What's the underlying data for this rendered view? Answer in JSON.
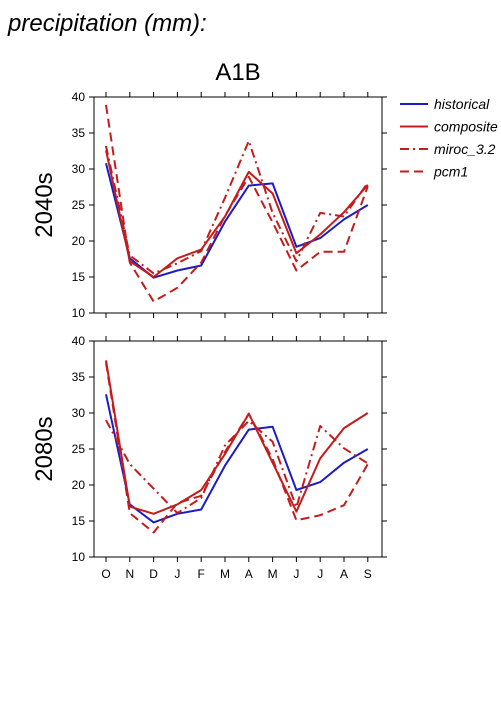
{
  "header": {
    "title": "precipitation (mm):"
  },
  "scenario": "A1B",
  "legend": {
    "position": "top-right",
    "items": [
      {
        "name": "historical",
        "color": "#1c1cc4",
        "dash": "solid"
      },
      {
        "name": "composite",
        "color": "#c41c1c",
        "dash": "solid"
      },
      {
        "name": "miroc_3.2",
        "color": "#c41c1c",
        "dash": "dashdot"
      },
      {
        "name": "pcm1",
        "color": "#c41c1c",
        "dash": "dash"
      }
    ]
  },
  "chart_data": [
    {
      "type": "line",
      "ylabel": "2040s",
      "categories": [
        "O",
        "N",
        "D",
        "J",
        "F",
        "M",
        "A",
        "M",
        "J",
        "J",
        "A",
        "S"
      ],
      "ylim": [
        10,
        40
      ],
      "yticks": [
        10,
        15,
        20,
        25,
        30,
        35,
        40
      ],
      "grid": false,
      "series": [
        {
          "name": "historical",
          "values": [
            30.8,
            17.6,
            14.9,
            15.9,
            16.6,
            22.7,
            27.7,
            28.0,
            19.2,
            20.4,
            23.0,
            25.0
          ]
        },
        {
          "name": "composite",
          "values": [
            32.6,
            17.2,
            15.0,
            17.6,
            18.8,
            23.4,
            29.6,
            26.6,
            18.3,
            20.9,
            24.0,
            27.8
          ]
        },
        {
          "name": "miroc_3.2",
          "values": [
            33.2,
            18.0,
            15.5,
            16.9,
            18.6,
            26.0,
            33.9,
            23.9,
            17.2,
            23.9,
            23.4,
            28.1
          ]
        },
        {
          "name": "pcm1",
          "values": [
            38.9,
            17.0,
            11.6,
            13.5,
            17.0,
            23.5,
            28.9,
            22.6,
            15.9,
            18.5,
            18.5,
            27.6
          ]
        }
      ]
    },
    {
      "type": "line",
      "ylabel": "2080s",
      "categories": [
        "O",
        "N",
        "D",
        "J",
        "F",
        "M",
        "A",
        "M",
        "J",
        "J",
        "A",
        "S"
      ],
      "ylim": [
        10,
        40
      ],
      "yticks": [
        10,
        15,
        20,
        25,
        30,
        35,
        40
      ],
      "grid": false,
      "series": [
        {
          "name": "historical",
          "values": [
            32.6,
            17.3,
            14.8,
            16.0,
            16.6,
            22.7,
            27.7,
            28.1,
            19.3,
            20.4,
            23.1,
            25.0
          ]
        },
        {
          "name": "composite",
          "values": [
            37.3,
            17.0,
            16.0,
            17.3,
            19.3,
            24.3,
            29.9,
            23.1,
            16.3,
            23.7,
            27.9,
            30.0
          ]
        },
        {
          "name": "miroc_3.2",
          "values": [
            29.0,
            22.9,
            19.5,
            16.1,
            18.2,
            25.5,
            28.9,
            26.0,
            16.9,
            28.2,
            25.1,
            23.0
          ]
        },
        {
          "name": "pcm1",
          "values": [
            37.0,
            16.1,
            13.4,
            17.5,
            18.5,
            24.6,
            29.9,
            23.6,
            15.1,
            15.8,
            17.2,
            22.9
          ]
        }
      ]
    }
  ]
}
